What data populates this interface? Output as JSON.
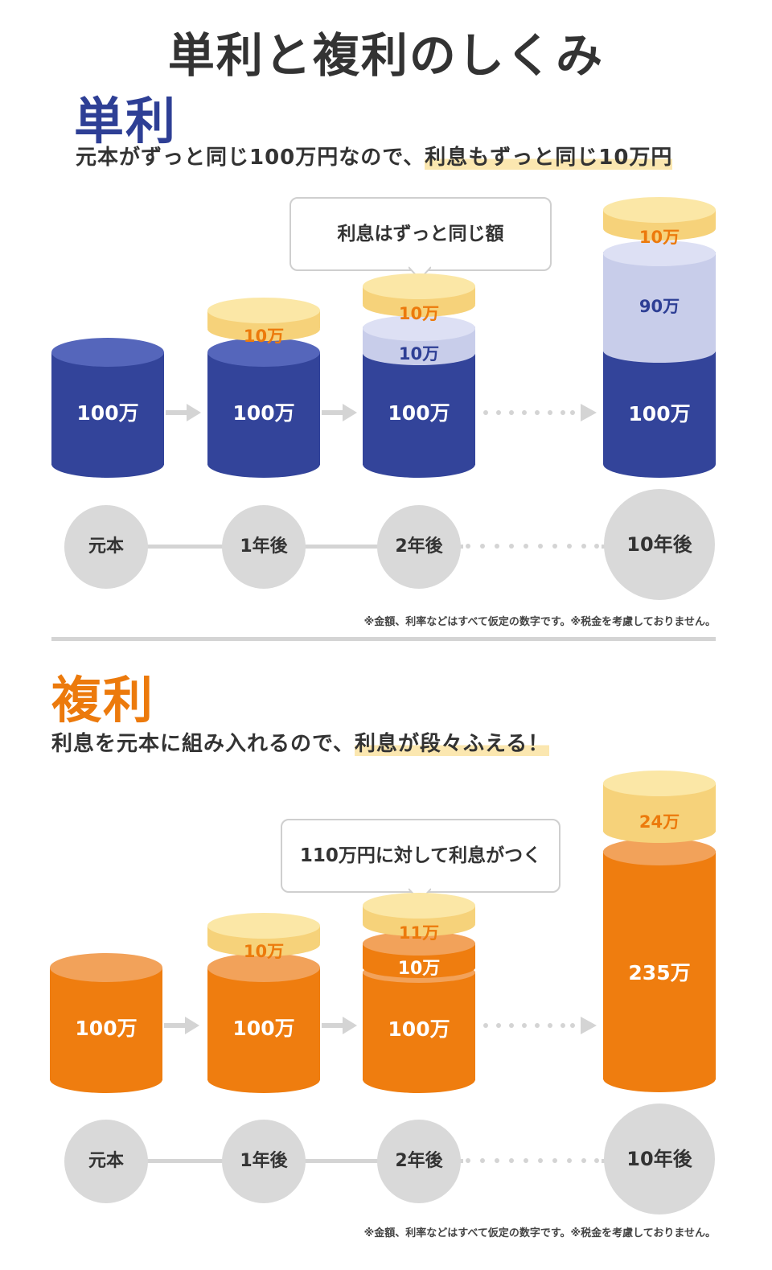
{
  "title": "単利と複利のしくみ",
  "simple": {
    "heading": "単利",
    "sub_plain": "元本がずっと同じ100万円なので、",
    "sub_highlight": "利息もずっと同じ10万円",
    "bubble": "利息はずっと同じ額",
    "principal": "100万",
    "interest": "10万",
    "accum_interest_2y": "10万",
    "accum_interest_10y": "90万",
    "steps": [
      "元本",
      "1年後",
      "2年後",
      "10年後"
    ],
    "note": "※金額、利率などはすべて仮定の数字です。※税金を考慮しておりません。"
  },
  "compound": {
    "heading": "複利",
    "sub_plain": "利息を元本に組み入れるので、",
    "sub_highlight": "利息が段々ふえる！",
    "bubble": "110万円に対して利息がつく",
    "principal": "100万",
    "interest_1y": "10万",
    "interest_2y": "11万",
    "accum_2y": "10万",
    "total_10y": "235万",
    "interest_10y": "24万",
    "steps": [
      "元本",
      "1年後",
      "2年後",
      "10年後"
    ],
    "note": "※金額、利率などはすべて仮定の数字です。※税金を考慮しておりません。"
  },
  "colors": {
    "navy": "#33449a",
    "navy_top": "#5566bb",
    "lavender": "#c8cdea",
    "gold": "#f6d27a",
    "gold_top": "#fbe7a6",
    "orange": "#ef7d0f",
    "orange_top": "#f2a25a",
    "highlight": "#fbe7b0"
  }
}
